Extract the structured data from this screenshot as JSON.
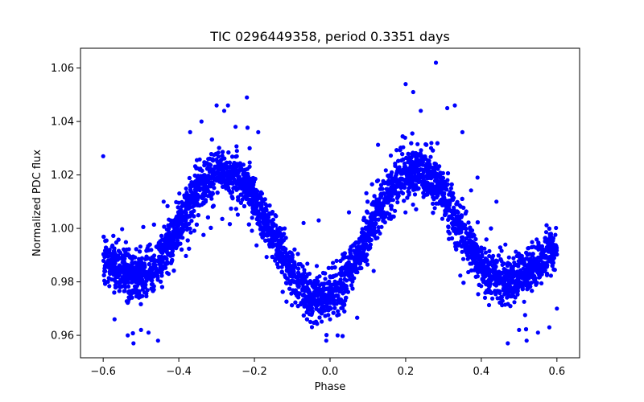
{
  "chart_data": {
    "type": "scatter",
    "title": "TIC 0296449358, period 0.3351 days",
    "xlabel": "Phase",
    "ylabel": "Normalized PDC flux",
    "xlim": [
      -0.66,
      0.66
    ],
    "ylim": [
      0.9516,
      1.0674
    ],
    "xticks": [
      -0.6,
      -0.4,
      -0.2,
      0.0,
      0.2,
      0.4,
      0.6
    ],
    "xtick_labels": [
      "−0.6",
      "−0.4",
      "−0.2",
      "0.0",
      "0.2",
      "0.4",
      "0.6"
    ],
    "yticks": [
      0.96,
      0.98,
      1.0,
      1.02,
      1.04,
      1.06
    ],
    "ytick_labels": [
      "0.96",
      "0.98",
      "1.00",
      "1.02",
      "1.04",
      "1.06"
    ],
    "grid": false,
    "color": "#0000ff",
    "series": [
      {
        "x": [
          -0.6,
          -0.575,
          -0.55,
          -0.525,
          -0.5,
          -0.475,
          -0.45,
          -0.425,
          -0.4,
          -0.375,
          -0.35,
          -0.325,
          -0.3,
          -0.275,
          -0.25,
          -0.225,
          -0.2,
          -0.175,
          -0.15,
          -0.125,
          -0.1,
          -0.075,
          -0.05,
          -0.025,
          0.0,
          0.025,
          0.05,
          0.075,
          0.1,
          0.125,
          0.15,
          0.175,
          0.2,
          0.225,
          0.25,
          0.275,
          0.3,
          0.325,
          0.35,
          0.375,
          0.4,
          0.425,
          0.45,
          0.475,
          0.5,
          0.525,
          0.55,
          0.575,
          0.6
        ],
        "y": [
          0.99,
          0.986,
          0.983,
          0.982,
          0.982,
          0.984,
          0.988,
          0.994,
          1.001,
          1.008,
          1.014,
          1.018,
          1.02,
          1.02,
          1.019,
          1.016,
          1.011,
          1.004,
          0.997,
          0.99,
          0.983,
          0.978,
          0.975,
          0.974,
          0.975,
          0.978,
          0.983,
          0.99,
          0.998,
          1.006,
          1.013,
          1.018,
          1.021,
          1.022,
          1.021,
          1.018,
          1.013,
          1.006,
          0.999,
          0.992,
          0.986,
          0.982,
          0.981,
          0.981,
          0.982,
          0.984,
          0.987,
          0.99,
          0.992
        ]
      }
    ],
    "outliers": {
      "x": [
        -0.6,
        -0.57,
        -0.535,
        -0.52,
        -0.5,
        -0.48,
        -0.455,
        -0.44,
        -0.37,
        -0.34,
        -0.3,
        -0.28,
        -0.27,
        -0.25,
        -0.22,
        -0.19,
        -0.12,
        -0.07,
        -0.03,
        -0.01,
        0.0,
        0.02,
        0.05,
        0.09,
        0.13,
        0.2,
        0.22,
        0.24,
        0.28,
        0.31,
        0.33,
        0.35,
        0.39,
        0.44,
        0.47,
        0.5,
        0.52,
        0.55,
        0.58,
        0.6
      ],
      "y": [
        1.027,
        0.966,
        0.96,
        0.957,
        0.962,
        0.961,
        0.958,
        1.01,
        1.036,
        1.04,
        1.046,
        1.044,
        1.046,
        1.038,
        1.049,
        1.036,
        1.0,
        1.002,
        1.003,
        0.958,
        0.966,
        0.96,
        1.006,
        1.004,
        1.006,
        1.054,
        1.051,
        1.044,
        1.062,
        1.045,
        1.046,
        1.036,
        1.019,
        1.01,
        0.957,
        0.962,
        0.958,
        0.961,
        0.963,
        0.97
      ]
    }
  }
}
